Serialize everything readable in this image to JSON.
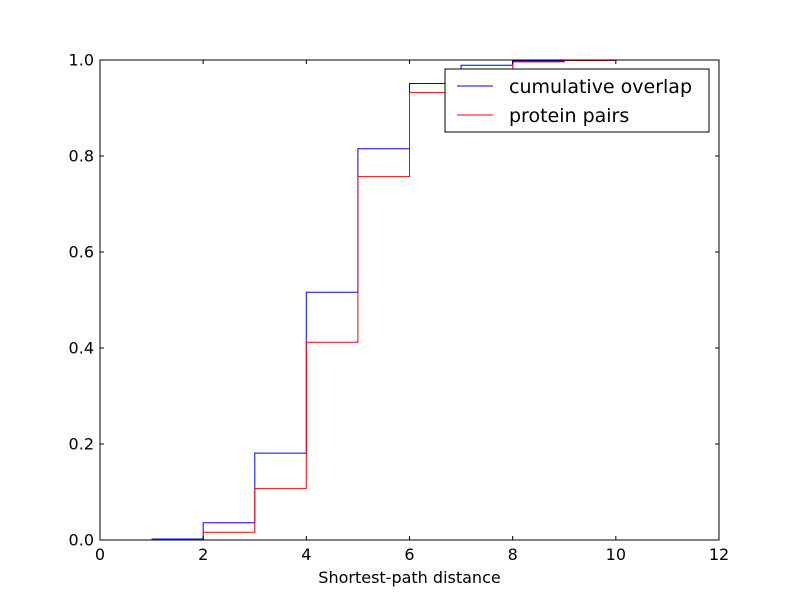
{
  "chart_data": {
    "type": "line",
    "step": "post",
    "xlabel": "Shortest-path distance",
    "ylabel": "",
    "xlim": [
      0,
      12
    ],
    "ylim": [
      0,
      1.0
    ],
    "x_ticks": [
      0,
      2,
      4,
      6,
      8,
      10,
      12
    ],
    "y_ticks": [
      0.0,
      0.2,
      0.4,
      0.6,
      0.8,
      1.0
    ],
    "x_tick_labels": [
      "0",
      "2",
      "4",
      "6",
      "8",
      "10",
      "12"
    ],
    "y_tick_labels": [
      "0.0",
      "0.2",
      "0.4",
      "0.6",
      "0.8",
      "1.0"
    ],
    "grid": false,
    "legend_position": "top-right",
    "series": [
      {
        "name": "cumulative overlap",
        "color": "#0000ff",
        "x": [
          1,
          2,
          3,
          4,
          5,
          6,
          7,
          8,
          9,
          10,
          11,
          12
        ],
        "y": [
          0.002,
          0.036,
          0.181,
          0.516,
          0.815,
          0.951,
          0.989,
          0.998,
          1.0,
          1.0,
          1.0,
          1.0
        ]
      },
      {
        "name": "protein pairs",
        "color": "#ff0000",
        "x": [
          1,
          2,
          3,
          4,
          5,
          6,
          7,
          8,
          9,
          10,
          11,
          12
        ],
        "y": [
          0.001,
          0.016,
          0.107,
          0.412,
          0.757,
          0.932,
          0.981,
          0.996,
          0.999,
          1.0,
          1.0,
          1.0
        ]
      }
    ]
  }
}
